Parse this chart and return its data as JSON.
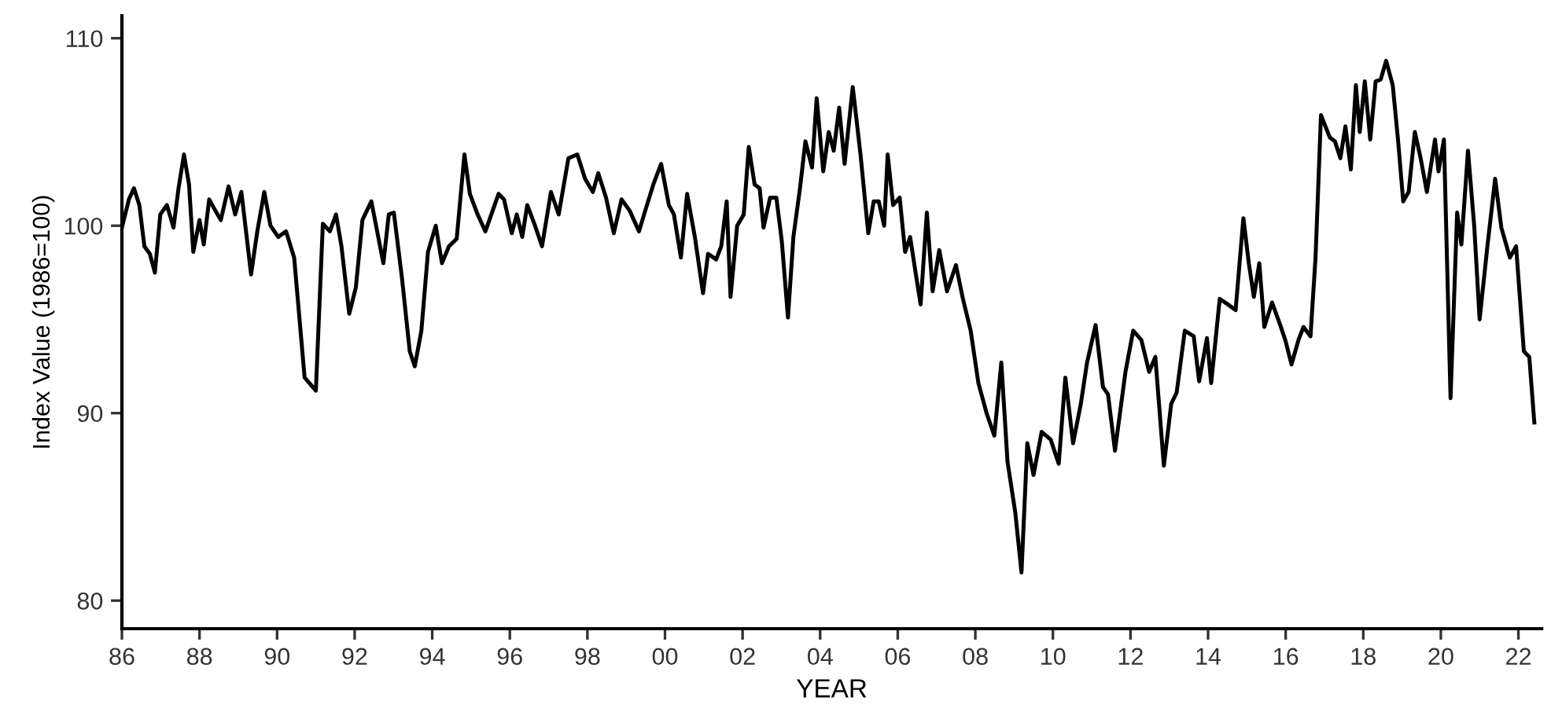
{
  "chart_data": {
    "type": "line",
    "xlabel": "YEAR",
    "ylabel": "Index Value (1986=100)",
    "xlim": [
      1986.0,
      2022.6
    ],
    "ylim": [
      78.5,
      111.2
    ],
    "xticks": [
      {
        "value": 1986,
        "label": "86"
      },
      {
        "value": 1988,
        "label": "88"
      },
      {
        "value": 1990,
        "label": "90"
      },
      {
        "value": 1992,
        "label": "92"
      },
      {
        "value": 1994,
        "label": "94"
      },
      {
        "value": 1996,
        "label": "96"
      },
      {
        "value": 1998,
        "label": "98"
      },
      {
        "value": 2000,
        "label": "00"
      },
      {
        "value": 2002,
        "label": "02"
      },
      {
        "value": 2004,
        "label": "04"
      },
      {
        "value": 2006,
        "label": "06"
      },
      {
        "value": 2008,
        "label": "08"
      },
      {
        "value": 2010,
        "label": "10"
      },
      {
        "value": 2012,
        "label": "12"
      },
      {
        "value": 2014,
        "label": "14"
      },
      {
        "value": 2016,
        "label": "16"
      },
      {
        "value": 2018,
        "label": "18"
      },
      {
        "value": 2020,
        "label": "20"
      },
      {
        "value": 2022,
        "label": "22"
      }
    ],
    "yticks": [
      80,
      90,
      100,
      110
    ],
    "grid": false,
    "marker": "none",
    "line_style": "solid",
    "series": [
      {
        "color": "#000000",
        "x": [
          1986.0,
          1986.18,
          1986.31,
          1986.45,
          1986.58,
          1986.72,
          1986.85,
          1986.99,
          1987.16,
          1987.33,
          1987.46,
          1987.6,
          1987.73,
          1987.84,
          1988.0,
          1988.11,
          1988.25,
          1988.41,
          1988.55,
          1988.75,
          1988.92,
          1989.08,
          1989.33,
          1989.49,
          1989.67,
          1989.83,
          1990.03,
          1990.23,
          1990.44,
          1990.71,
          1991.0,
          1991.18,
          1991.36,
          1991.52,
          1991.66,
          1991.86,
          1992.03,
          1992.2,
          1992.43,
          1992.58,
          1992.74,
          1992.88,
          1993.01,
          1993.22,
          1993.42,
          1993.55,
          1993.72,
          1993.89,
          1994.09,
          1994.25,
          1994.43,
          1994.63,
          1994.83,
          1994.97,
          1995.17,
          1995.37,
          1995.71,
          1995.85,
          1996.05,
          1996.18,
          1996.32,
          1996.45,
          1996.65,
          1996.83,
          1997.06,
          1997.26,
          1997.51,
          1997.74,
          1997.94,
          1998.14,
          1998.28,
          1998.48,
          1998.68,
          1998.88,
          1999.09,
          1999.33,
          1999.49,
          1999.7,
          1999.9,
          2000.1,
          2000.23,
          2000.41,
          2000.57,
          2000.77,
          2000.98,
          2001.11,
          2001.32,
          2001.45,
          2001.59,
          2001.69,
          2001.86,
          2002.03,
          2002.16,
          2002.31,
          2002.44,
          2002.54,
          2002.71,
          2002.87,
          2003.01,
          2003.17,
          2003.31,
          2003.48,
          2003.62,
          2003.79,
          2003.91,
          2004.08,
          2004.22,
          2004.35,
          2004.49,
          2004.63,
          2004.84,
          2005.04,
          2005.24,
          2005.38,
          2005.51,
          2005.65,
          2005.74,
          2005.88,
          2006.05,
          2006.19,
          2006.32,
          2006.46,
          2006.59,
          2006.75,
          2006.9,
          2007.07,
          2007.27,
          2007.5,
          2007.68,
          2007.88,
          2008.08,
          2008.29,
          2008.49,
          2008.67,
          2008.83,
          2009.03,
          2009.19,
          2009.34,
          2009.5,
          2009.71,
          2009.94,
          2010.15,
          2010.32,
          2010.52,
          2010.72,
          2010.88,
          2011.1,
          2011.29,
          2011.42,
          2011.6,
          2011.87,
          2012.07,
          2012.28,
          2012.48,
          2012.64,
          2012.86,
          2013.05,
          2013.19,
          2013.4,
          2013.63,
          2013.77,
          2013.97,
          2014.08,
          2014.3,
          2014.51,
          2014.71,
          2014.91,
          2015.05,
          2015.18,
          2015.32,
          2015.45,
          2015.65,
          2015.86,
          2015.99,
          2016.15,
          2016.33,
          2016.46,
          2016.64,
          2016.77,
          2016.91,
          2017.14,
          2017.27,
          2017.41,
          2017.54,
          2017.68,
          2017.81,
          2017.91,
          2018.04,
          2018.18,
          2018.32,
          2018.45,
          2018.59,
          2018.76,
          2018.9,
          2019.03,
          2019.17,
          2019.33,
          2019.48,
          2019.64,
          2019.85,
          2019.94,
          2020.08,
          2020.25,
          2020.42,
          2020.53,
          2020.7,
          2020.86,
          2021.0,
          2021.2,
          2021.4,
          2021.56,
          2021.78,
          2021.94,
          2022.14,
          2022.28,
          2022.41
        ],
        "values": [
          99.9,
          101.4,
          102.0,
          101.1,
          98.9,
          98.5,
          97.5,
          100.6,
          101.1,
          99.9,
          102.0,
          103.8,
          102.2,
          98.6,
          100.3,
          99.0,
          101.4,
          100.8,
          100.3,
          102.1,
          100.6,
          101.8,
          97.4,
          99.7,
          101.8,
          100.0,
          99.4,
          99.7,
          98.3,
          91.9,
          91.2,
          100.1,
          99.7,
          100.6,
          98.9,
          95.3,
          96.7,
          100.3,
          101.3,
          99.7,
          98.0,
          100.6,
          100.7,
          97.2,
          93.3,
          92.5,
          94.4,
          98.6,
          100.0,
          98.0,
          98.9,
          99.3,
          103.8,
          101.7,
          100.6,
          99.7,
          101.7,
          101.4,
          99.6,
          100.6,
          99.4,
          101.1,
          100.0,
          98.9,
          101.8,
          100.6,
          103.6,
          103.8,
          102.5,
          101.8,
          102.8,
          101.5,
          99.6,
          101.4,
          100.8,
          99.7,
          100.8,
          102.2,
          103.3,
          101.1,
          100.6,
          98.3,
          101.7,
          99.4,
          96.4,
          98.5,
          98.2,
          98.9,
          101.3,
          96.2,
          100.0,
          100.6,
          104.2,
          102.2,
          102.0,
          99.9,
          101.5,
          101.5,
          99.2,
          95.1,
          99.4,
          102.0,
          104.5,
          103.1,
          106.8,
          102.9,
          105.0,
          104.0,
          106.3,
          103.3,
          107.4,
          103.8,
          99.6,
          101.3,
          101.3,
          100.0,
          103.8,
          101.1,
          101.5,
          98.6,
          99.4,
          97.5,
          95.8,
          100.7,
          96.5,
          98.7,
          96.5,
          97.9,
          96.1,
          94.4,
          91.6,
          90.0,
          88.8,
          92.7,
          87.4,
          84.7,
          81.5,
          88.4,
          86.7,
          89.0,
          88.6,
          87.3,
          91.9,
          88.4,
          90.5,
          92.7,
          94.7,
          91.4,
          91.0,
          88.0,
          92.2,
          94.4,
          93.9,
          92.2,
          93.0,
          87.2,
          90.5,
          91.1,
          94.4,
          94.1,
          91.7,
          94.0,
          91.6,
          96.1,
          95.8,
          95.5,
          100.4,
          98.0,
          96.2,
          98.0,
          94.6,
          95.9,
          94.7,
          93.9,
          92.6,
          93.9,
          94.6,
          94.1,
          98.3,
          105.9,
          104.7,
          104.5,
          103.6,
          105.3,
          103.0,
          107.5,
          105.0,
          107.7,
          104.6,
          107.7,
          107.8,
          108.8,
          107.5,
          104.5,
          101.3,
          101.8,
          105.0,
          103.6,
          101.8,
          104.6,
          102.9,
          104.6,
          90.8,
          100.7,
          99.0,
          104.0,
          100.0,
          95.0,
          98.9,
          102.5,
          99.9,
          98.3,
          98.9,
          93.3,
          93.0,
          89.5
        ]
      }
    ]
  }
}
